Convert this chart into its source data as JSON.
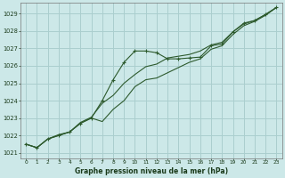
{
  "xlabel": "Graphe pression niveau de la mer (hPa)",
  "bg_color": "#cce8e8",
  "grid_color": "#aacece",
  "line_color": "#2d5a2d",
  "xlim_min": -0.5,
  "xlim_max": 23.5,
  "ylim_min": 1020.7,
  "ylim_max": 1029.6,
  "xticks": [
    0,
    1,
    2,
    3,
    4,
    5,
    6,
    7,
    8,
    9,
    10,
    11,
    12,
    13,
    14,
    15,
    16,
    17,
    18,
    19,
    20,
    21,
    22,
    23
  ],
  "yticks": [
    1021,
    1022,
    1023,
    1024,
    1025,
    1026,
    1027,
    1028,
    1029
  ],
  "series1_x": [
    0,
    1,
    2,
    3,
    4,
    5,
    6,
    7,
    8,
    9,
    10,
    11,
    12,
    13,
    14,
    15,
    16,
    17,
    18,
    19,
    20,
    21,
    22,
    23
  ],
  "series1_y": [
    1021.5,
    1021.3,
    1021.8,
    1022.0,
    1022.2,
    1022.7,
    1023.0,
    1024.0,
    1025.2,
    1026.2,
    1026.85,
    1026.85,
    1026.75,
    1026.4,
    1026.4,
    1026.45,
    1026.5,
    1027.15,
    1027.25,
    1027.95,
    1028.45,
    1028.6,
    1028.95,
    1029.35
  ],
  "series2_x": [
    0,
    1,
    2,
    3,
    4,
    5,
    6,
    7,
    8,
    9,
    10,
    11,
    12,
    13,
    14,
    15,
    16,
    17,
    18,
    19,
    20,
    21,
    22,
    23
  ],
  "series2_y": [
    1021.5,
    1021.3,
    1021.8,
    1022.0,
    1022.2,
    1022.7,
    1023.0,
    1022.8,
    1023.5,
    1024.0,
    1024.8,
    1025.2,
    1025.3,
    1025.6,
    1025.9,
    1026.2,
    1026.4,
    1026.95,
    1027.15,
    1027.8,
    1028.3,
    1028.55,
    1028.9,
    1029.35
  ],
  "series3_x": [
    0,
    1,
    2,
    3,
    4,
    5,
    6,
    7,
    8,
    9,
    10,
    11,
    12,
    13,
    14,
    15,
    16,
    17,
    18,
    19,
    20,
    21,
    22,
    23
  ],
  "series3_y": [
    1021.5,
    1021.3,
    1021.8,
    1022.05,
    1022.2,
    1022.75,
    1023.05,
    1023.85,
    1024.3,
    1025.0,
    1025.5,
    1025.95,
    1026.1,
    1026.45,
    1026.55,
    1026.65,
    1026.85,
    1027.2,
    1027.35,
    1027.95,
    1028.4,
    1028.6,
    1028.95,
    1029.35
  ]
}
